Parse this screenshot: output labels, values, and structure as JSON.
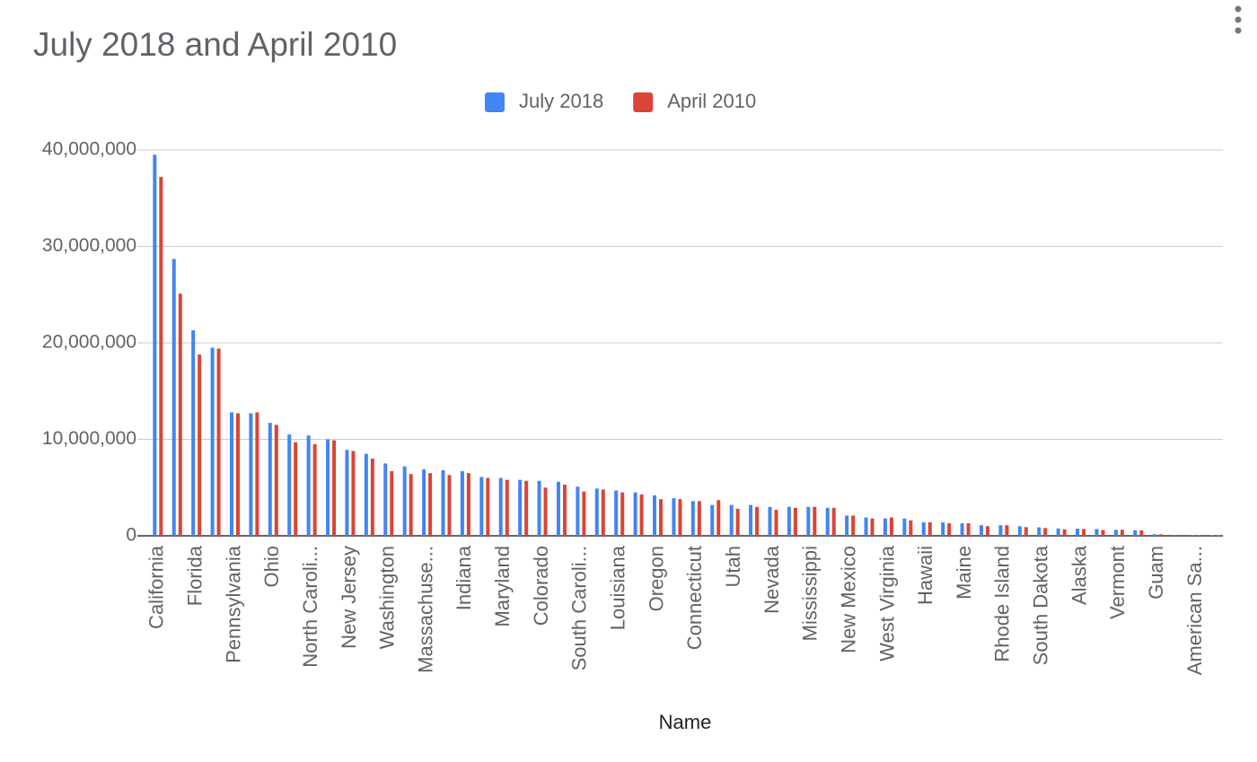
{
  "chart_data": {
    "type": "bar",
    "title": "July 2018 and April 2010",
    "x_label": "Name",
    "categories": [
      "California",
      null,
      "Florida",
      null,
      "Pennsylvania",
      null,
      "Ohio",
      null,
      "North Caroli...",
      null,
      "New Jersey",
      null,
      "Washington",
      null,
      "Massachuse...",
      null,
      "Indiana",
      null,
      "Maryland",
      null,
      "Colorado",
      null,
      "South Caroli...",
      null,
      "Louisiana",
      null,
      "Oregon",
      null,
      "Connecticut",
      null,
      "Utah",
      null,
      "Nevada",
      null,
      "Mississippi",
      null,
      "New Mexico",
      null,
      "West Virginia",
      null,
      "Hawaii",
      null,
      "Maine",
      null,
      "Rhode Island",
      null,
      "South Dakota",
      null,
      "Alaska",
      null,
      "Vermont",
      null,
      "Guam",
      null,
      "American Sa...",
      null
    ],
    "series": [
      {
        "name": "July 2018",
        "color": "#4285f4",
        "values": [
          39500000,
          28700000,
          21300000,
          19500000,
          12800000,
          12700000,
          11700000,
          10500000,
          10400000,
          10000000,
          8900000,
          8500000,
          7500000,
          7200000,
          6900000,
          6800000,
          6700000,
          6100000,
          6000000,
          5800000,
          5700000,
          5600000,
          5100000,
          4900000,
          4700000,
          4500000,
          4200000,
          3900000,
          3600000,
          3200000,
          3200000,
          3200000,
          3000000,
          3000000,
          3000000,
          2900000,
          2100000,
          1900000,
          1800000,
          1800000,
          1400000,
          1400000,
          1300000,
          1100000,
          1100000,
          1000000,
          880000,
          760000,
          740000,
          700000,
          630000,
          580000,
          170000,
          100000,
          50000,
          50000
        ]
      },
      {
        "name": "April 2010",
        "color": "#db4437",
        "values": [
          37200000,
          25100000,
          18800000,
          19400000,
          12700000,
          12800000,
          11500000,
          9700000,
          9500000,
          9900000,
          8800000,
          8000000,
          6700000,
          6400000,
          6500000,
          6300000,
          6500000,
          6000000,
          5800000,
          5700000,
          5000000,
          5300000,
          4600000,
          4800000,
          4500000,
          4300000,
          3800000,
          3800000,
          3600000,
          3700000,
          2800000,
          3000000,
          2700000,
          2900000,
          3000000,
          2900000,
          2100000,
          1800000,
          1900000,
          1600000,
          1400000,
          1300000,
          1300000,
          1000000,
          1100000,
          900000,
          810000,
          670000,
          710000,
          600000,
          630000,
          560000,
          160000,
          100000,
          60000,
          50000
        ]
      }
    ],
    "ylim": [
      0,
      40000000
    ],
    "yticks": [
      0,
      {
        "value": 10000000,
        "label": "10,000,000"
      },
      {
        "value": 20000000,
        "label": "20,000,000"
      },
      {
        "value": 30000000,
        "label": "30,000,000"
      },
      {
        "value": 40000000,
        "label": "40,000,000"
      }
    ],
    "grid": true,
    "legend": "top"
  }
}
